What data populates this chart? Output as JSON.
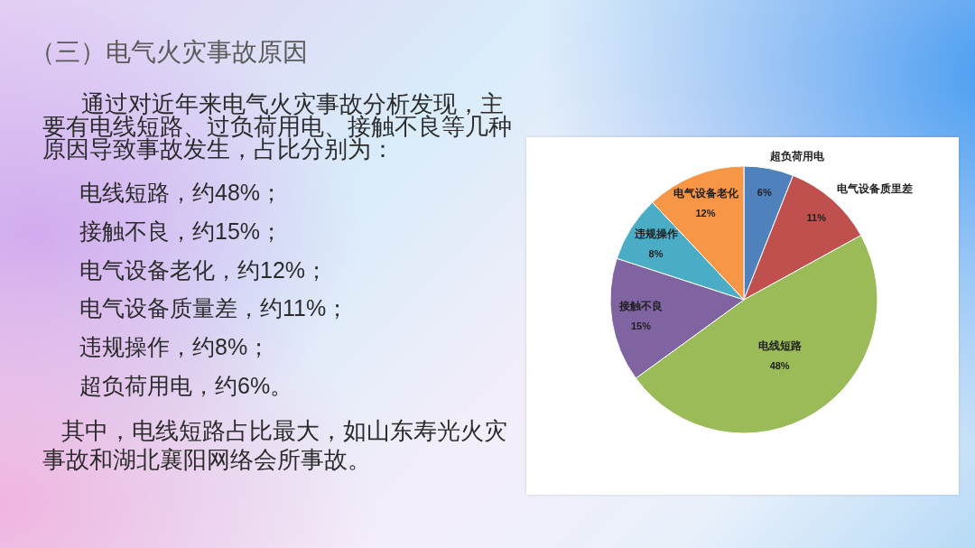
{
  "chart_data": {
    "type": "pie",
    "title": "（三）电气火灾事故原因",
    "categories": [
      "超负荷用电",
      "电气设备质里差",
      "电线短路",
      "接触不良",
      "违规操作",
      "电气设备老化"
    ],
    "values": [
      6,
      11,
      48,
      15,
      8,
      12
    ],
    "colors": [
      "#4f81bd",
      "#c0504d",
      "#9bbb59",
      "#8064a2",
      "#4bacc6",
      "#f79646"
    ],
    "value_labels": [
      "6%",
      "11%",
      "48%",
      "15%",
      "8%",
      "12%"
    ],
    "annotations": [
      "通过对近年来电气火灾事故分析发现，主要有电线短路、过负荷用电、接触不良等几种原因导致事故发生，占比分别为：",
      "电线短路，约48%；",
      "接触不良，约15%；",
      "电气设备老化，约12%；",
      "电气设备质量差，约11%；",
      "违规操作，约8%；",
      "超负荷用电，约6%。",
      "其中，电线短路占比最大，如山东寿光火灾事故和湖北襄阳网络会所事故。"
    ]
  }
}
